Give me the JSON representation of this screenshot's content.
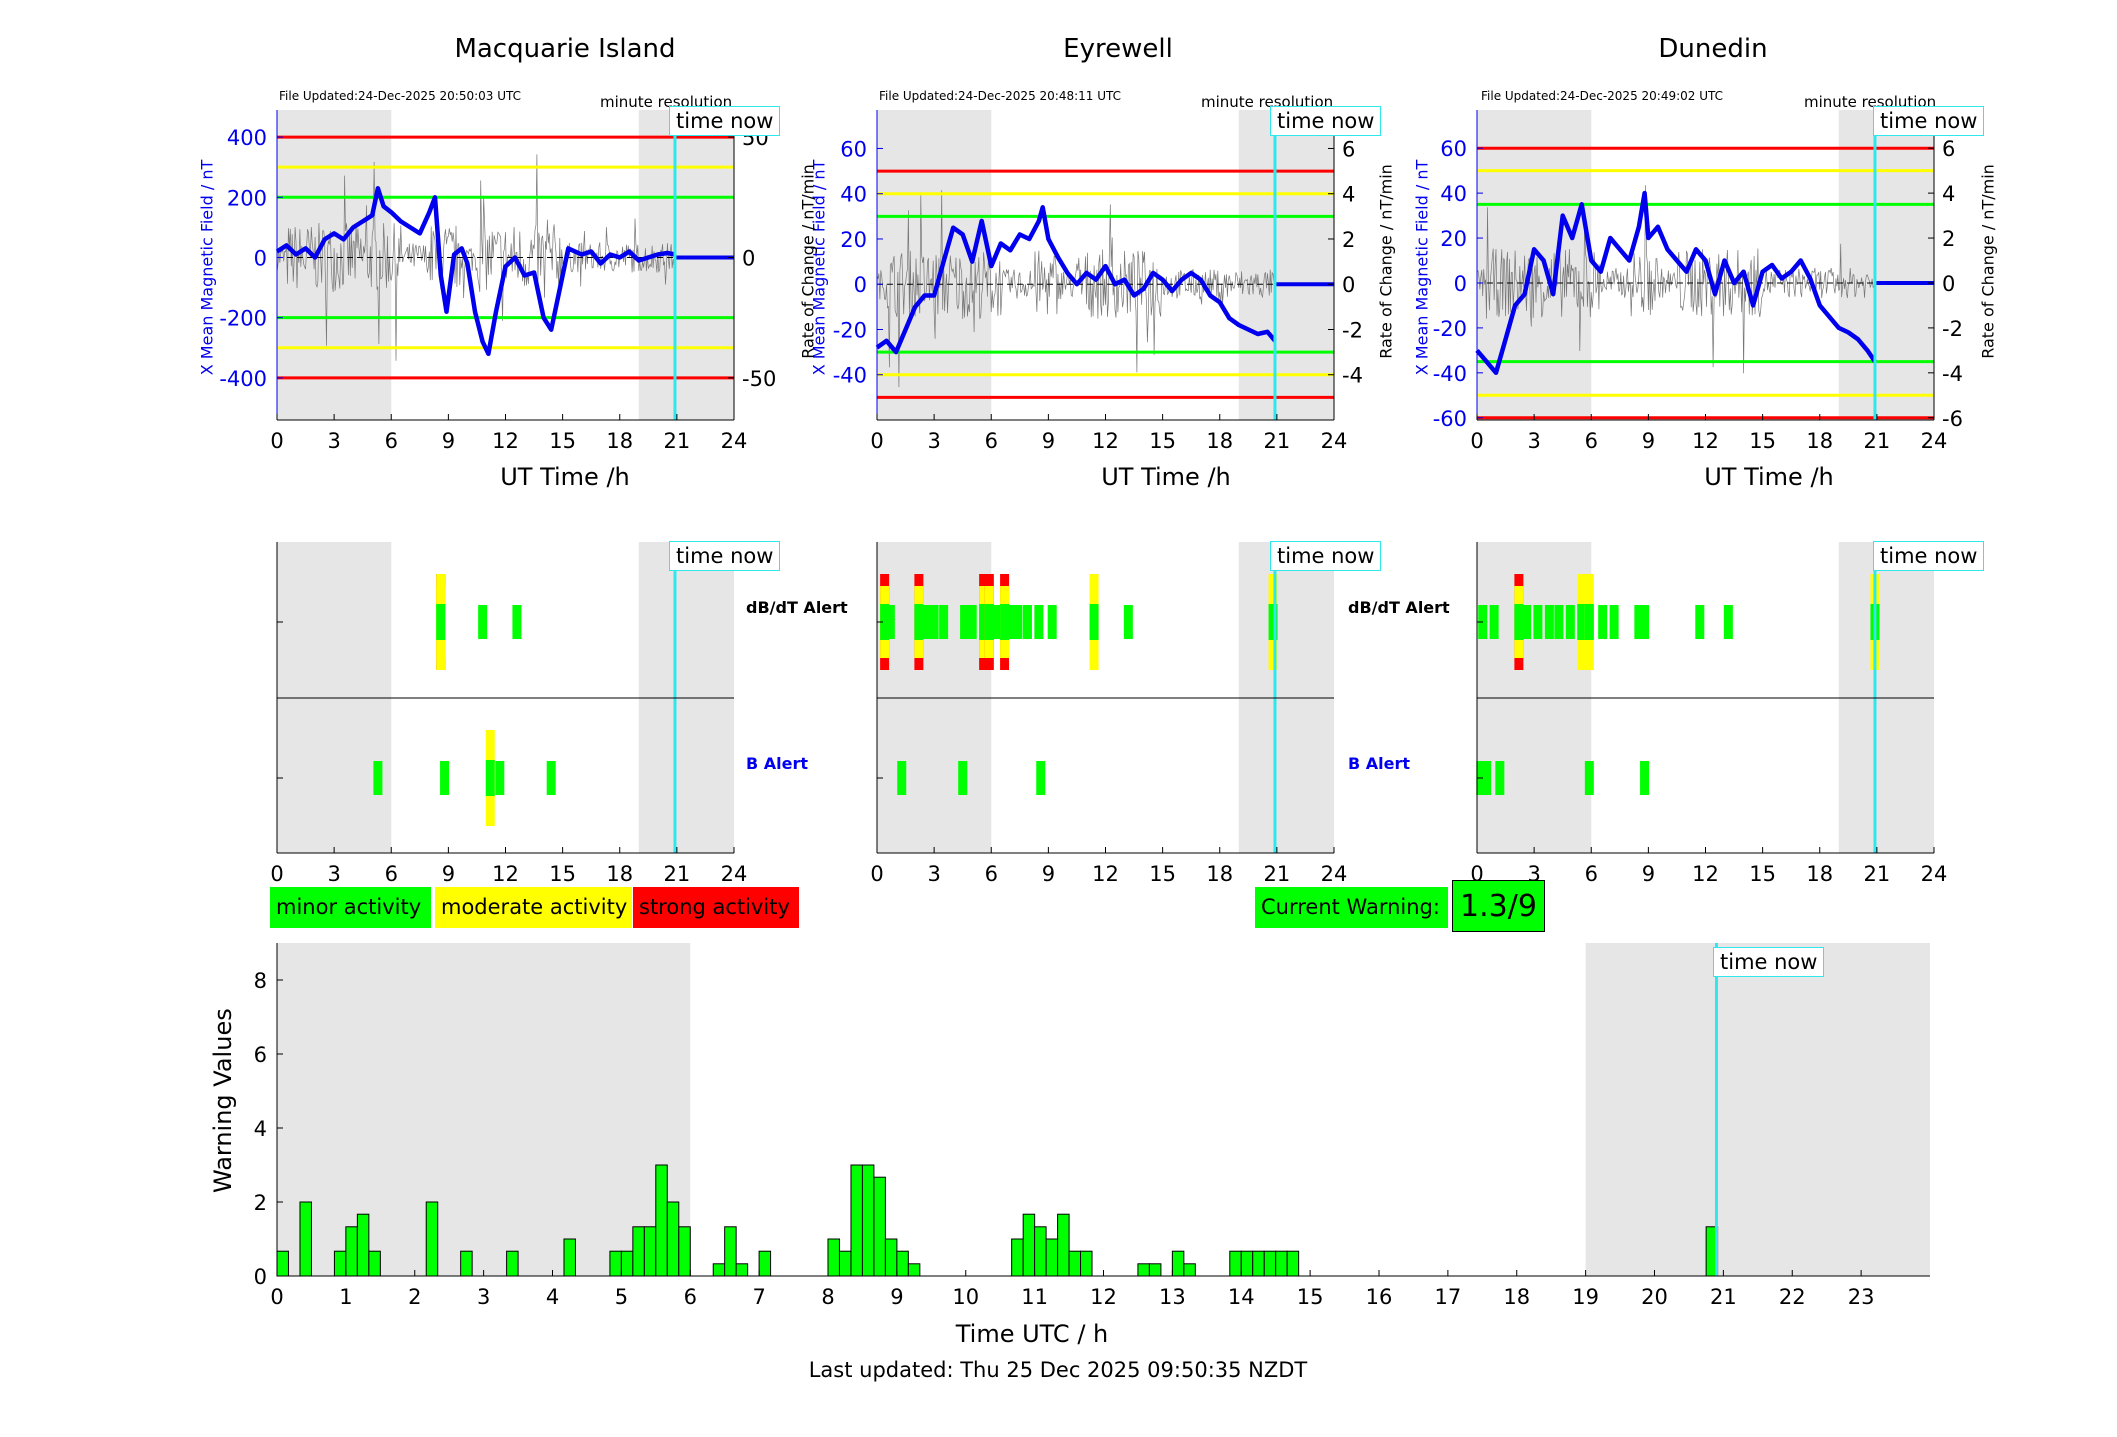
{
  "stations": [
    {
      "name": "Macquarie Island",
      "file_updated": "File Updated:24-Dec-2025 20:50:03 UTC",
      "resolution": "minute resolution",
      "left_ylabel": "X Mean Magnetic Field / nT",
      "right_ylabel": "",
      "xlabel": "UT Time /h",
      "ylim": [
        -540,
        490
      ],
      "left_ticks": [
        400,
        200,
        0,
        -200,
        -400
      ],
      "right_ticks": [
        50,
        0,
        -50
      ],
      "right_scale": 8,
      "red": 400,
      "yellow": 300,
      "green": 200
    },
    {
      "name": "Eyrewell",
      "file_updated": "File Updated:24-Dec-2025 20:48:11 UTC",
      "resolution": "minute resolution",
      "left_ylabel": "X Mean Magnetic Field / nT",
      "right_ylabel": "Rate of Change / nT/min",
      "xlabel": "UT Time /h",
      "ylim": [
        -60,
        77
      ],
      "left_ticks": [
        60,
        40,
        20,
        0,
        -20,
        -40
      ],
      "right_ticks": [
        6,
        4,
        2,
        0,
        -2,
        -4
      ],
      "right_scale": 10,
      "red": 50,
      "yellow": 40,
      "green": 30
    },
    {
      "name": "Dunedin",
      "file_updated": "File Updated:24-Dec-2025 20:49:02 UTC",
      "resolution": "minute resolution",
      "left_ylabel": "X Mean Magnetic Field / nT",
      "right_ylabel": "Rate of Change / nT/min",
      "xlabel": "UT Time /h",
      "ylim": [
        -61,
        77
      ],
      "left_ticks": [
        60,
        40,
        20,
        0,
        -20,
        -40,
        -60
      ],
      "right_ticks": [
        6,
        4,
        2,
        0,
        -2,
        -4,
        -6
      ],
      "right_scale": 10,
      "red": 60,
      "yellow": 50,
      "green": 35
    }
  ],
  "first_rate_label": "Rate of Change / nT/min",
  "time_now_label": "time now",
  "time_now_hour": 20.9,
  "x_ticks": [
    0,
    3,
    6,
    9,
    12,
    15,
    18,
    21,
    24
  ],
  "alerts": {
    "dbdt_label": "dB/dT Alert",
    "b_label": "B Alert"
  },
  "legend": {
    "minor": "minor activity",
    "moderate": "moderate activity",
    "strong": "strong activity"
  },
  "current_warning": {
    "label": "Current Warning:",
    "value": "1.3/9"
  },
  "colors": {
    "minor": "#00ff00",
    "moderate": "#ffff00",
    "strong": "#ff0000",
    "night": "#e6e6e6",
    "time_now": "#2ee8ee",
    "field": "#0000ee"
  },
  "footer": "Last updated: Thu 25 Dec 2025 09:50:35 NZDT",
  "chart_data": [
    {
      "type": "line",
      "title": "Macquarie Island",
      "xlabel": "UT Time /h",
      "ylabel": "X Mean Magnetic Field / nT",
      "xlim": [
        0,
        24
      ],
      "ylim": [
        -540,
        490
      ],
      "series": [
        {
          "values": [
            [
              0,
              20
            ],
            [
              0.5,
              40
            ],
            [
              1,
              10
            ],
            [
              1.5,
              30
            ],
            [
              2,
              0
            ],
            [
              2.5,
              60
            ],
            [
              3,
              80
            ],
            [
              3.5,
              60
            ],
            [
              4,
              100
            ],
            [
              4.5,
              120
            ],
            [
              5,
              140
            ],
            [
              5.3,
              230
            ],
            [
              5.6,
              170
            ],
            [
              6,
              150
            ],
            [
              6.5,
              120
            ],
            [
              7,
              100
            ],
            [
              7.5,
              80
            ],
            [
              8,
              150
            ],
            [
              8.3,
              200
            ],
            [
              8.6,
              -60
            ],
            [
              8.9,
              -180
            ],
            [
              9.3,
              10
            ],
            [
              9.7,
              30
            ],
            [
              10,
              -20
            ],
            [
              10.4,
              -180
            ],
            [
              10.8,
              -280
            ],
            [
              11.1,
              -320
            ],
            [
              11.5,
              -180
            ],
            [
              12,
              -30
            ],
            [
              12.5,
              0
            ],
            [
              13,
              -60
            ],
            [
              13.5,
              -50
            ],
            [
              14,
              -200
            ],
            [
              14.4,
              -240
            ],
            [
              14.8,
              -120
            ],
            [
              15.3,
              30
            ],
            [
              16,
              10
            ],
            [
              16.5,
              20
            ],
            [
              17,
              -20
            ],
            [
              17.5,
              10
            ],
            [
              18,
              0
            ],
            [
              18.5,
              20
            ],
            [
              19,
              -10
            ],
            [
              19.5,
              0
            ],
            [
              20,
              10
            ],
            [
              20.5,
              15
            ],
            [
              20.9,
              10
            ]
          ]
        }
      ]
    },
    {
      "type": "line",
      "title": "Eyrewell",
      "xlabel": "UT Time /h",
      "ylabel": "X Mean Magnetic Field / nT",
      "xlim": [
        0,
        24
      ],
      "ylim": [
        -60,
        77
      ],
      "series": [
        {
          "values": [
            [
              0,
              -28
            ],
            [
              0.5,
              -25
            ],
            [
              1,
              -30
            ],
            [
              1.5,
              -20
            ],
            [
              2,
              -10
            ],
            [
              2.5,
              -5
            ],
            [
              3,
              -5
            ],
            [
              3.5,
              10
            ],
            [
              4,
              25
            ],
            [
              4.5,
              22
            ],
            [
              5,
              10
            ],
            [
              5.5,
              28
            ],
            [
              6,
              8
            ],
            [
              6.5,
              18
            ],
            [
              7,
              15
            ],
            [
              7.5,
              22
            ],
            [
              8,
              20
            ],
            [
              8.5,
              28
            ],
            [
              8.7,
              34
            ],
            [
              9,
              20
            ],
            [
              9.5,
              12
            ],
            [
              10,
              5
            ],
            [
              10.5,
              0
            ],
            [
              11,
              5
            ],
            [
              11.5,
              2
            ],
            [
              12,
              8
            ],
            [
              12.5,
              0
            ],
            [
              13,
              2
            ],
            [
              13.5,
              -5
            ],
            [
              14,
              -2
            ],
            [
              14.5,
              5
            ],
            [
              15,
              2
            ],
            [
              15.5,
              -3
            ],
            [
              16,
              2
            ],
            [
              16.5,
              5
            ],
            [
              17,
              2
            ],
            [
              17.5,
              -5
            ],
            [
              18,
              -8
            ],
            [
              18.5,
              -15
            ],
            [
              19,
              -18
            ],
            [
              19.5,
              -20
            ],
            [
              20,
              -22
            ],
            [
              20.5,
              -21
            ],
            [
              20.9,
              -25
            ]
          ]
        }
      ]
    },
    {
      "type": "line",
      "title": "Dunedin",
      "xlabel": "UT Time /h",
      "ylabel": "X Mean Magnetic Field / nT",
      "xlim": [
        0,
        24
      ],
      "ylim": [
        -61,
        77
      ],
      "series": [
        {
          "values": [
            [
              0,
              -30
            ],
            [
              0.5,
              -35
            ],
            [
              1,
              -40
            ],
            [
              1.5,
              -25
            ],
            [
              2,
              -10
            ],
            [
              2.5,
              -5
            ],
            [
              3,
              15
            ],
            [
              3.5,
              10
            ],
            [
              4,
              -5
            ],
            [
              4.5,
              30
            ],
            [
              5,
              20
            ],
            [
              5.5,
              35
            ],
            [
              6,
              10
            ],
            [
              6.5,
              5
            ],
            [
              7,
              20
            ],
            [
              7.5,
              15
            ],
            [
              8,
              10
            ],
            [
              8.5,
              25
            ],
            [
              8.8,
              40
            ],
            [
              9,
              20
            ],
            [
              9.5,
              25
            ],
            [
              10,
              15
            ],
            [
              10.5,
              10
            ],
            [
              11,
              5
            ],
            [
              11.5,
              15
            ],
            [
              12,
              10
            ],
            [
              12.5,
              -5
            ],
            [
              13,
              10
            ],
            [
              13.5,
              0
            ],
            [
              14,
              5
            ],
            [
              14.5,
              -10
            ],
            [
              15,
              5
            ],
            [
              15.5,
              8
            ],
            [
              16,
              2
            ],
            [
              16.5,
              5
            ],
            [
              17,
              10
            ],
            [
              17.5,
              2
            ],
            [
              18,
              -10
            ],
            [
              18.5,
              -15
            ],
            [
              19,
              -20
            ],
            [
              19.5,
              -22
            ],
            [
              20,
              -25
            ],
            [
              20.5,
              -30
            ],
            [
              20.9,
              -35
            ]
          ]
        }
      ]
    },
    {
      "type": "bar",
      "xlabel": "Time UTC / h",
      "ylabel": "Warning Values",
      "xlim": [
        0,
        24
      ],
      "ylim": [
        0,
        9
      ],
      "x_ticks": [
        0,
        1,
        2,
        3,
        4,
        5,
        6,
        7,
        8,
        9,
        10,
        11,
        12,
        13,
        14,
        15,
        16,
        17,
        18,
        19,
        20,
        21,
        22,
        23
      ],
      "y_ticks": [
        0,
        2,
        4,
        6,
        8
      ],
      "x": [
        0.083,
        0.417,
        0.917,
        1.083,
        1.25,
        1.417,
        2.25,
        2.75,
        3.417,
        4.25,
        4.917,
        5.083,
        5.25,
        5.417,
        5.583,
        5.75,
        5.917,
        6.417,
        6.583,
        6.75,
        7.083,
        8.083,
        8.25,
        8.417,
        8.583,
        8.75,
        8.917,
        9.083,
        9.25,
        10.75,
        10.917,
        11.083,
        11.25,
        11.417,
        11.583,
        11.75,
        12.583,
        12.75,
        13.083,
        13.25,
        13.917,
        14.083,
        14.25,
        14.417,
        14.583,
        14.75,
        20.833
      ],
      "values": [
        0.67,
        2,
        0.67,
        1.33,
        1.67,
        0.67,
        2,
        0.67,
        0.67,
        1,
        0.67,
        0.67,
        1.33,
        1.33,
        3,
        2,
        1.33,
        0.33,
        1.33,
        0.33,
        0.67,
        1,
        0.67,
        3,
        3,
        2.67,
        1,
        0.67,
        0.33,
        1,
        1.67,
        1.33,
        1,
        1.67,
        0.67,
        0.67,
        0.33,
        0.33,
        0.67,
        0.33,
        0.67,
        0.67,
        0.67,
        0.67,
        0.67,
        0.67,
        1.33
      ]
    }
  ]
}
